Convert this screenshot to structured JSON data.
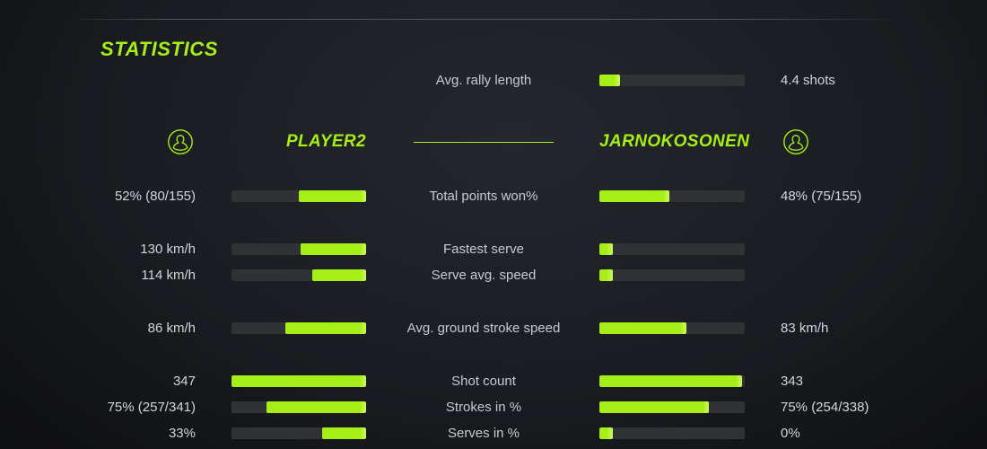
{
  "title": "STATISTICS",
  "colors": {
    "accent": "#a6ee18",
    "accent_edge": "#cdf95e",
    "bar_background": "#303236",
    "value_text": "#d2d6da",
    "label_text": "#c6cbd1"
  },
  "rally": {
    "label": "Avg. rally length",
    "value": "4.4 shots",
    "fill_pct": 14
  },
  "players": {
    "left": "PLAYER2",
    "right": "JARNOKOSONEN",
    "left_icon": "person-circle-icon",
    "right_icon": "person-circle-icon"
  },
  "stats": [
    {
      "label": "Total points won%",
      "left_value": "52% (80/155)",
      "right_value": "48% (75/155)",
      "left_pct": 50,
      "right_pct": 48,
      "gap": false
    },
    {
      "label": "Fastest serve",
      "left_value": "130 km/h",
      "right_value": "",
      "left_pct": 49,
      "right_pct": 9,
      "gap": true
    },
    {
      "label": "Serve avg. speed",
      "left_value": "114 km/h",
      "right_value": "",
      "left_pct": 40,
      "right_pct": 9,
      "gap": false
    },
    {
      "label": "Avg. ground stroke speed",
      "left_value": "86 km/h",
      "right_value": "83 km/h",
      "left_pct": 60,
      "right_pct": 60,
      "gap": true
    },
    {
      "label": "Shot count",
      "left_value": "347",
      "right_value": "343",
      "left_pct": 100,
      "right_pct": 98,
      "gap": true
    },
    {
      "label": "Strokes in %",
      "left_value": "75% (257/341)",
      "right_value": "75% (254/338)",
      "left_pct": 74,
      "right_pct": 75,
      "gap": false
    },
    {
      "label": "Serves in %",
      "left_value": "33%",
      "right_value": "0%",
      "left_pct": 33,
      "right_pct": 9,
      "gap": false
    }
  ]
}
